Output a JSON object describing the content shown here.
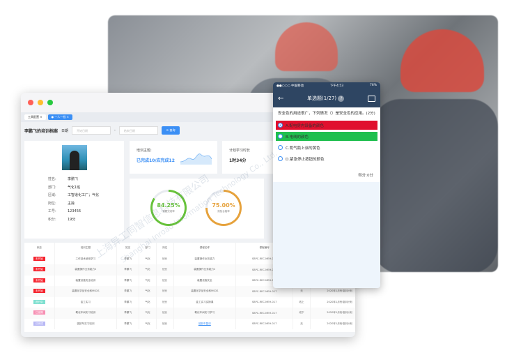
{
  "desktop": {
    "tabs": [
      {
        "label": "工具配置"
      },
      {
        "label": "一人一档"
      }
    ],
    "page_title": "李鹏飞的培训档案",
    "date_label": "日期",
    "start_placeholder": "开始日期",
    "end_placeholder": "结束日期",
    "date_sep": "-",
    "query_label": "查询",
    "profile": {
      "rows": [
        {
          "k": "姓名:",
          "v": "李鹏飞"
        },
        {
          "k": "部门:",
          "v": "气化1班"
        },
        {
          "k": "区域:",
          "v": "工智道化工厂；气化"
        },
        {
          "k": "岗位:",
          "v": "主操"
        },
        {
          "k": "工号:",
          "v": "123456"
        },
        {
          "k": "积分:",
          "v": "19分"
        }
      ]
    },
    "topic": {
      "label": "培训主题:",
      "value": "已完成10/应完成12"
    },
    "plan": {
      "label": "计划学习时长",
      "value": "1时34分"
    },
    "rings": [
      {
        "value": "84.25%",
        "label": "课题完成率",
        "percent": 84.25,
        "color": "#67c23a"
      },
      {
        "value": "75.00%",
        "label": "测验合格率",
        "percent": 75,
        "color": "#e6a23c"
      }
    ],
    "table": {
      "headers": [
        "状态",
        "培训主题",
        "姓名",
        "部门",
        "岗位",
        "课程名称",
        "课程编号",
        "形式",
        "计划",
        "备注"
      ],
      "rows": [
        {
          "status": "未开始",
          "status_color": "#f5222d",
          "cells": [
            "工作技术使用学习",
            "李鹏飞",
            "气化",
            "班长",
            "装置操作业务能力",
            "SBPC-REC-MEH-017",
            "",
            "",
            ""
          ]
        },
        {
          "status": "未开始",
          "status_color": "#f5222d",
          "cells": [
            "装置操作业务能力2",
            "李鹏飞",
            "气化",
            "班长",
            "装置操作业务能力2",
            "SBPC-REC-MEH-017",
            "",
            "",
            ""
          ]
        },
        {
          "status": "未开始",
          "status_color": "#f5222d",
          "cells": [
            "装置设施安全培训",
            "李鹏飞",
            "气化",
            "班长",
            "装置设施安全",
            "SBPC-REC-MEH-017",
            "",
            "",
            ""
          ]
        },
        {
          "status": "未开始",
          "status_color": "#f5222d",
          "cells": [
            "装置化学品安全和MSDS",
            "李鹏飞",
            "气化",
            "班长",
            "装置化学品安全和MSDS",
            "SBPC-REC-MEH-017",
            "无",
            "2020年1月份培训计划",
            "需提"
          ]
        },
        {
          "status": "进行中",
          "status_color": "#7fe0d0",
          "cells": [
            "金工实习",
            "李鹏飞",
            "气化",
            "班长",
            "金工实习实操课",
            "SBPC-REC-MEH-017",
            "线上",
            "2020年1月份培训计划",
            "那就"
          ]
        },
        {
          "status": "已延期",
          "status_color": "#f78fb3",
          "cells": [
            "氧化车间实习培训",
            "李鹏飞",
            "气化",
            "班长",
            "氧化车间实习学习",
            "SBPC-REC-MEH-017",
            "线下",
            "2020年1月份培训计划",
            "那就"
          ]
        },
        {
          "status": "已完成",
          "status_color": "#b8b8f5",
          "cells": [
            "装卸车实习培训",
            "李鹏飞",
            "气化",
            "班长",
            "装卸车复训",
            "SBPC-REC-MEH-017",
            "无",
            "2020年1月份培训计划",
            "那就"
          ]
        }
      ]
    }
  },
  "phone": {
    "carrier": "●●○○○ 中国移动",
    "time": "下午4:53",
    "battery": "76%",
    "title": "单选题(1/27)",
    "question": "安全色的用途很广，下列情况（）是安全色的应用。(2分)",
    "options": [
      {
        "label": "A.配电房内设备的颜色",
        "state": "wrong",
        "color": "#e0102e"
      },
      {
        "label": "B.电线的颜色",
        "state": "correct",
        "color": "#1fbf4f"
      },
      {
        "label": "C.氮气瓶上涂的黄色",
        "state": "none"
      },
      {
        "label": "D.紧急停止按钮的颜色",
        "state": "none"
      }
    ],
    "score": "得分:0分"
  },
  "watermark": {
    "cn": "上海异工同智信息科技有限公司",
    "en": "Shanghai Inroad Information Technology Co., Ltd."
  }
}
